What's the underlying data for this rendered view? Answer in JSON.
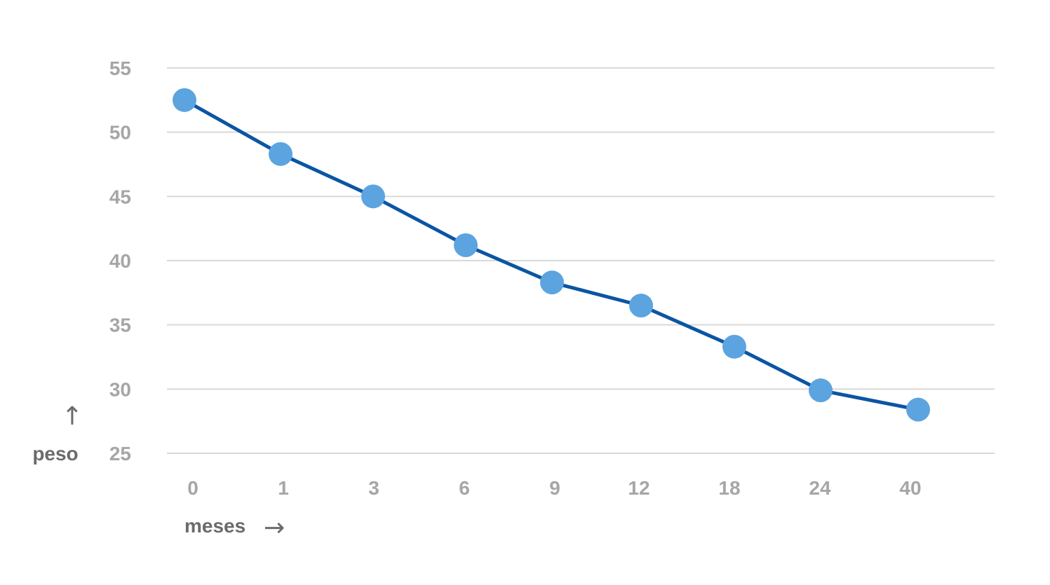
{
  "chart_data": {
    "type": "line",
    "title": "",
    "xlabel": "meses",
    "ylabel": "peso",
    "x_arrow": "→",
    "y_arrow": "↑",
    "categories": [
      "0",
      "1",
      "3",
      "6",
      "9",
      "12",
      "18",
      "24",
      "40"
    ],
    "series": [
      {
        "values": [
          52.5,
          48.3,
          45.0,
          41.2,
          38.3,
          36.5,
          33.3,
          29.9,
          28.4
        ]
      }
    ],
    "ylim": [
      25,
      55
    ],
    "yticks": [
      25,
      30,
      35,
      40,
      45,
      50,
      55
    ],
    "grid": true,
    "legend": "none",
    "colors": {
      "line": "#0b55a3",
      "marker": "#5ba4e0",
      "tick_text": "#a6a6a6",
      "axis_label_text": "#6b6b6b",
      "grid": "#d9d9d9"
    }
  }
}
